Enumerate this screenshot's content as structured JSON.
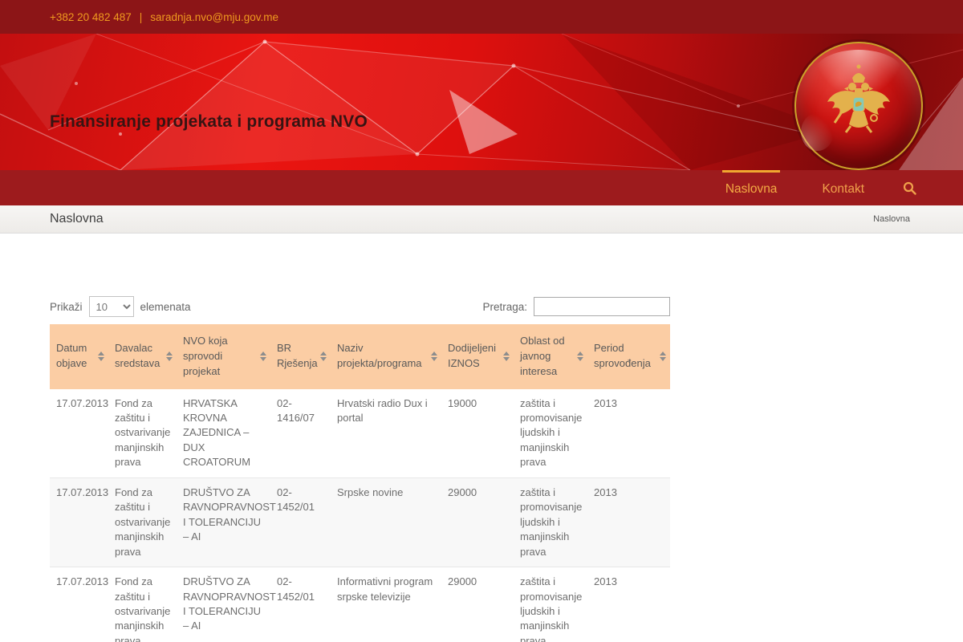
{
  "topbar": {
    "phone": "+382 20 482 487",
    "separator": "|",
    "email": "saradnja.nvo@mju.gov.me"
  },
  "banner": {
    "title": "Finansiranje projekata i programa NVO",
    "logo": "montenegro-coat-of-arms"
  },
  "nav": {
    "items": [
      {
        "label": "Naslovna",
        "active": true
      },
      {
        "label": "Kontakt",
        "active": false
      }
    ],
    "search_icon": "magnifier"
  },
  "breadcrumb": {
    "page_title": "Naslovna",
    "trail": "Naslovna"
  },
  "table_controls": {
    "show_label": "Prikaži",
    "page_size": "10",
    "elements_label": "elemenata",
    "search_label": "Pretraga:",
    "search_value": ""
  },
  "table": {
    "columns": [
      "Datum objave",
      "Davalac sredstava",
      "NVO koja sprovodi projekat",
      "BR Rješenja",
      "Naziv projekta/programa",
      "Dodijeljeni IZNOS",
      "Oblast od javnog interesa",
      "Period sprovođenja"
    ],
    "rows": [
      [
        "17.07.2013",
        "Fond za zaštitu i ostvarivanje manjinskih prava",
        "HRVATSKA KROVNA ZAJEDNICA – DUX CROATORUM",
        "02-1416/07",
        "Hrvatski radio Dux i portal",
        "19000",
        "zaštita i promovisanje ljudskih i manjinskih prava",
        "2013"
      ],
      [
        "17.07.2013",
        "Fond za zaštitu i ostvarivanje manjinskih prava",
        "DRUŠTVO ZA RAVNOPRAVNOST I TOLERANCIJU – AI",
        "02-1452/01",
        "Srpske novine",
        "29000",
        "zaštita i promovisanje ljudskih i manjinskih prava",
        "2013"
      ],
      [
        "17.07.2013",
        "Fond za zaštitu i ostvarivanje manjinskih prava",
        "DRUŠTVO ZA RAVNOPRAVNOST I TOLERANCIJU – AI",
        "02-1452/01",
        "Informativni program srpske televizije",
        "29000",
        "zaštita i promovisanje ljudskih i manjinskih prava",
        "2013"
      ]
    ]
  },
  "colors": {
    "topbar_bg": "#8c1517",
    "banner_red": "#de100e",
    "nav_bg": "#9d1b1d",
    "link_orange": "#f0a14b",
    "active_underline": "#f0a830",
    "table_header_bg": "#fbcda4",
    "gold": "#e3b14c"
  }
}
